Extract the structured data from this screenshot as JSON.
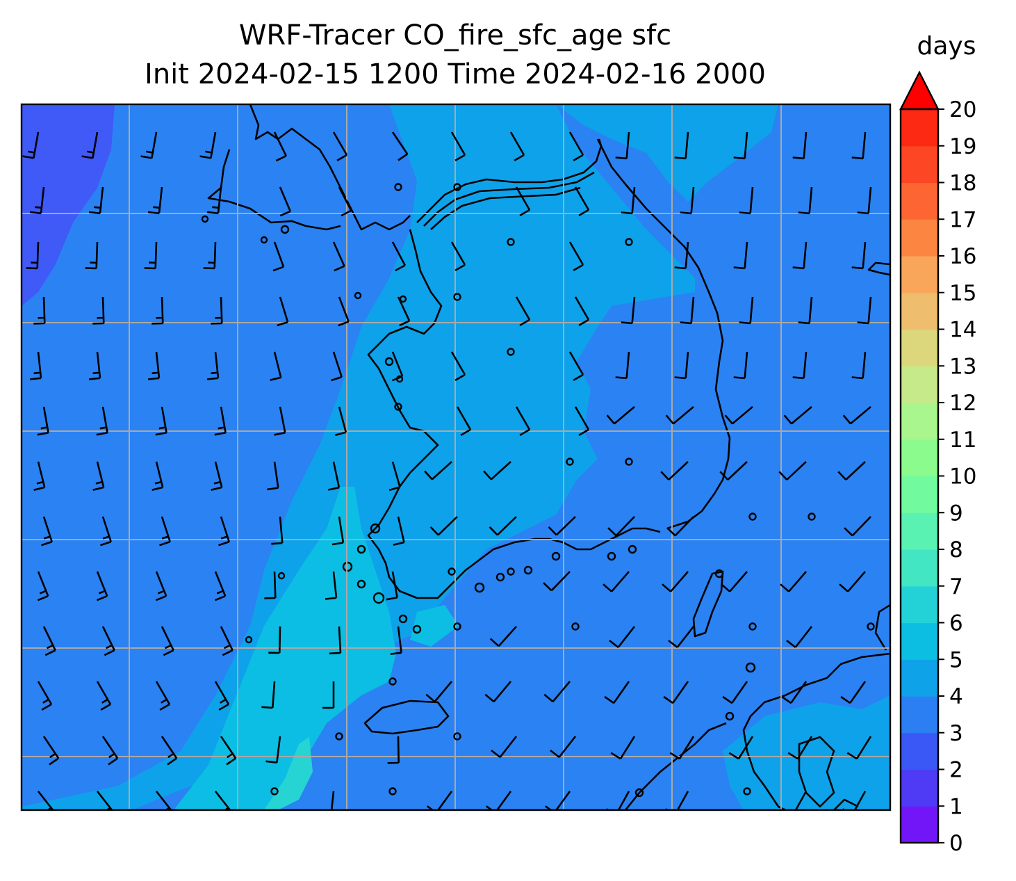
{
  "title": {
    "line1": "WRF-Tracer CO_fire_sfc_age sfc",
    "line2": "Init 2024-02-15 1200 Time 2024-02-16 2000"
  },
  "colorbar": {
    "units": "days",
    "min": 0,
    "max": 20,
    "extend": "max",
    "tick_labels": [
      "0",
      "1",
      "2",
      "3",
      "4",
      "5",
      "6",
      "7",
      "8",
      "9",
      "10",
      "11",
      "12",
      "13",
      "14",
      "15",
      "16",
      "17",
      "18",
      "19",
      "20"
    ],
    "colors": [
      "#7216f7",
      "#4f3bf5",
      "#3a58f5",
      "#2b7ff2",
      "#0ea2e8",
      "#0cbfe2",
      "#22d2d6",
      "#42e6c3",
      "#59f2b3",
      "#72fa9e",
      "#8bfb8e",
      "#a9f68e",
      "#c6e98a",
      "#dcd77c",
      "#eebd6d",
      "#f9a55a",
      "#fc8542",
      "#fd6533",
      "#fc4624",
      "#fd2912",
      "#fa0a00"
    ],
    "extend_color": "#ff0000"
  },
  "map": {
    "field_colors": {
      "purple_low": "#3f5af7",
      "blue_3_4": "#2b82f2",
      "lightblue_4_5": "#0ea2ea",
      "cyan_5_6": "#0cbee3",
      "teal_6_7": "#26d4d4"
    },
    "gridline_color": "#a9a9a9",
    "coastline_color": "#000000",
    "layers": [
      "age-field",
      "coastlines",
      "gridlines",
      "wind-barbs"
    ]
  }
}
